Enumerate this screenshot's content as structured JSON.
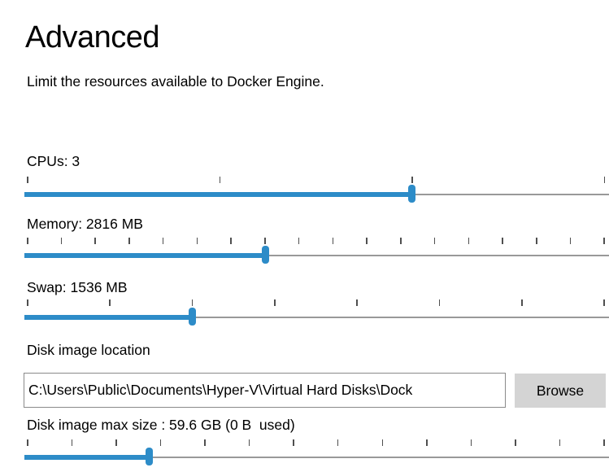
{
  "page": {
    "title": "Advanced",
    "description": "Limit the resources available to Docker Engine."
  },
  "sliders": {
    "cpus": {
      "label": "CPUs: 3",
      "value": 3,
      "unit": "CPUs",
      "ticks": 4,
      "fill_percent": 66.3
    },
    "memory": {
      "label": "Memory: 2816 MB",
      "value": 2816,
      "unit": "MB",
      "ticks": 18,
      "fill_percent": 41.2
    },
    "swap": {
      "label": "Swap: 1536 MB",
      "value": 1536,
      "unit": "MB",
      "ticks": 8,
      "fill_percent": 28.7
    },
    "disk": {
      "label": "Disk image max size : 59.6 GB (0 B  used)",
      "value": 59.6,
      "unit": "GB",
      "ticks": 14,
      "fill_percent": 21.3
    }
  },
  "disk_image": {
    "location_label": "Disk image location",
    "location_value": "C:\\Users\\Public\\Documents\\Hyper-V\\Virtual Hard Disks\\Dock",
    "browse_label": "Browse"
  },
  "colors": {
    "accent_blue": "#2d8cc8",
    "track_gray": "#999999",
    "tick_gray": "#4f4f4f",
    "button_gray": "#d4d4d4",
    "text": "#000000"
  }
}
